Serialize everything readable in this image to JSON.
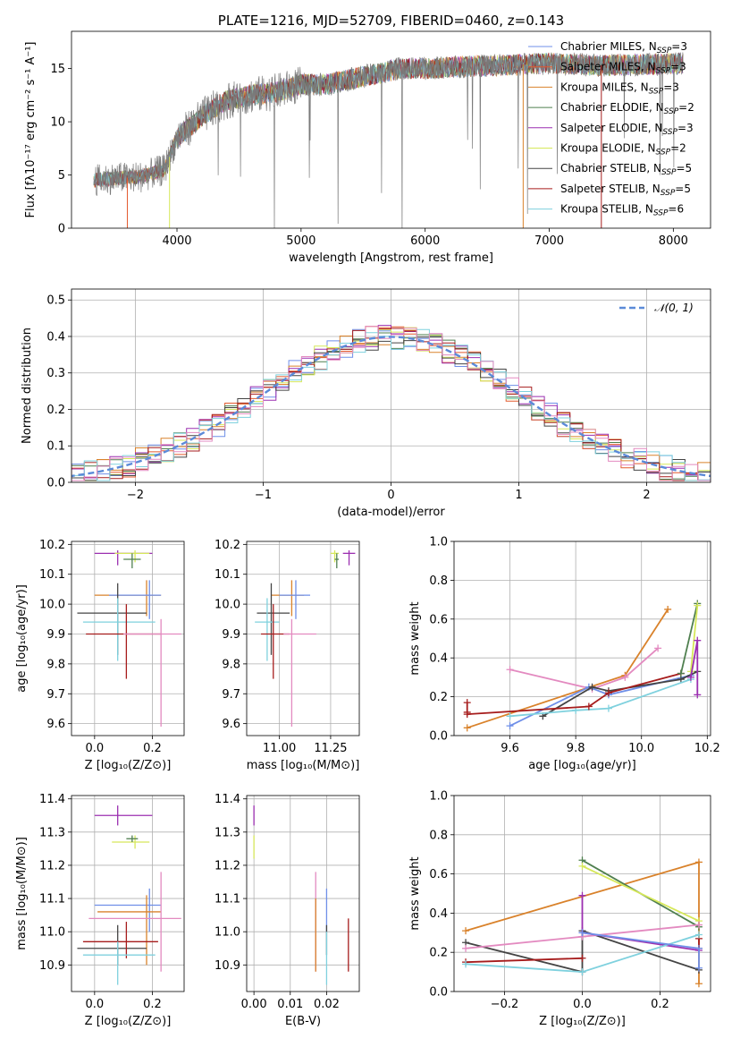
{
  "colors": {
    "Chabrier MILES": "#6f8fe8",
    "Salpeter MILES": "#e35a2e",
    "Kroupa MILES": "#d9822b",
    "Chabrier ELODIE": "#4f7f4f",
    "Salpeter ELODIE": "#9b2fb0",
    "Kroupa ELODIE": "#d6e85a",
    "Chabrier STELIB": "#444444",
    "Salpeter STELIB": "#a61c1c",
    "Kroupa STELIB": "#7fd1de",
    "extra_pink": "#e38ac0",
    "normal": "#5b8ad8",
    "data": "#7a7a7a"
  },
  "chart_data": [
    {
      "id": "spectrum",
      "type": "line",
      "title": "PLATE=1216, MJD=52709, FIBERID=0460, z=0.143",
      "xlabel": "wavelength [Angstrom, rest frame]",
      "ylabel": "Flux [fλ10⁻¹⁷ erg cm⁻² s⁻¹ A⁻¹]",
      "xlim": [
        3150,
        8300
      ],
      "ylim": [
        0,
        18.5
      ],
      "xticks": [
        4000,
        5000,
        6000,
        7000,
        8000
      ],
      "yticks": [
        0,
        5,
        10,
        15
      ],
      "continuum": {
        "x": [
          3330,
          3500,
          3700,
          3900,
          4000,
          4200,
          4400,
          4600,
          4800,
          5000,
          5200,
          5400,
          5600,
          5800,
          6000,
          6300,
          6600,
          7000,
          7400,
          7800,
          8080
        ],
        "y": [
          4.5,
          4.7,
          4.8,
          5.5,
          8.5,
          10.5,
          12.0,
          12.5,
          12.8,
          13.5,
          13.5,
          14.0,
          14.5,
          15.0,
          15.0,
          15.2,
          15.3,
          15.5,
          15.3,
          15.4,
          15.5
        ]
      },
      "legend_position": "upper right",
      "legend": [
        {
          "label": "Chabrier MILES, N",
          "sub": "SSP",
          "tail": "=3",
          "color": "#6f8fe8"
        },
        {
          "label": "Salpeter MILES, N",
          "sub": "SSP",
          "tail": "=3",
          "color": "#e35a2e"
        },
        {
          "label": "Kroupa MILES, N",
          "sub": "SSP",
          "tail": "=3",
          "color": "#d9822b"
        },
        {
          "label": "Chabrier ELODIE, N",
          "sub": "SSP",
          "tail": "=2",
          "color": "#4f7f4f"
        },
        {
          "label": "Salpeter ELODIE, N",
          "sub": "SSP",
          "tail": "=3",
          "color": "#9b2fb0"
        },
        {
          "label": "Kroupa ELODIE, N",
          "sub": "SSP",
          "tail": "=2",
          "color": "#d6e85a"
        },
        {
          "label": "Chabrier STELIB, N",
          "sub": "SSP",
          "tail": "=5",
          "color": "#444444"
        },
        {
          "label": "Salpeter STELIB, N",
          "sub": "SSP",
          "tail": "=5",
          "color": "#a61c1c"
        },
        {
          "label": "Kroupa STELIB, N",
          "sub": "SSP",
          "tail": "=6",
          "color": "#7fd1de"
        }
      ]
    },
    {
      "id": "residuals",
      "type": "line",
      "xlabel": "(data-model)/error",
      "ylabel": "Normed distribution",
      "xlim": [
        -2.5,
        2.5
      ],
      "ylim": [
        0,
        0.53
      ],
      "xticks": [
        -2,
        -1,
        0,
        1,
        2
      ],
      "xtick_labels": [
        "−2",
        "−1",
        "0",
        "1",
        "2"
      ],
      "yticks": [
        0.0,
        0.1,
        0.2,
        0.3,
        0.4,
        0.5
      ],
      "ytick_labels": [
        "0.0",
        "0.1",
        "0.2",
        "0.3",
        "0.4",
        "0.5"
      ],
      "legend_position": "upper right",
      "legend_label": "𝒩(0, 1)",
      "normal_mean": 0,
      "normal_sigma": 1,
      "bin_width": 0.1
    },
    {
      "id": "age_vs_Z",
      "type": "scatter",
      "xlabel": "Z [log₁₀(Z/Z⊙)]",
      "ylabel": "age  [log₁₀(age/yr)]",
      "xlim": [
        -0.08,
        0.31
      ],
      "ylim": [
        9.56,
        10.21
      ],
      "xticks": [
        0.0,
        0.2
      ],
      "xtick_labels": [
        "0.0",
        "0.2"
      ],
      "yticks": [
        9.6,
        9.7,
        9.8,
        9.9,
        10.0,
        10.1,
        10.2
      ],
      "ytick_labels": [
        "9.6",
        "9.7",
        "9.8",
        "9.9",
        "10.0",
        "10.1",
        "10.2"
      ],
      "points": [
        {
          "c": "#9b2fb0",
          "x": 0.08,
          "xl": 0.0,
          "xh": 0.2,
          "y": 10.17,
          "yl": 10.13,
          "yh": 10.18
        },
        {
          "c": "#d6e85a",
          "x": 0.14,
          "xl": 0.07,
          "xh": 0.19,
          "y": 10.17,
          "yl": 10.14,
          "yh": 10.18
        },
        {
          "c": "#4f7f4f",
          "x": 0.13,
          "xl": 0.1,
          "xh": 0.16,
          "y": 10.15,
          "yl": 10.12,
          "yh": 10.17
        },
        {
          "c": "#d9822b",
          "x": 0.18,
          "xl": 0.0,
          "xh": 0.23,
          "y": 10.03,
          "yl": 9.96,
          "yh": 10.08
        },
        {
          "c": "#6f8fe8",
          "x": 0.19,
          "xl": 0.05,
          "xh": 0.23,
          "y": 10.03,
          "yl": 9.95,
          "yh": 10.08
        },
        {
          "c": "#444444",
          "x": 0.08,
          "xl": -0.06,
          "xh": 0.18,
          "y": 9.97,
          "yl": 9.83,
          "yh": 10.07
        },
        {
          "c": "#7fd1de",
          "x": 0.08,
          "xl": -0.04,
          "xh": 0.21,
          "y": 9.94,
          "yl": 9.81,
          "yh": 10.02
        },
        {
          "c": "#a61c1c",
          "x": 0.11,
          "xl": -0.03,
          "xh": 0.23,
          "y": 9.9,
          "yl": 9.75,
          "yh": 10.0
        },
        {
          "c": "#e38ac0",
          "x": 0.23,
          "xl": 0.1,
          "xh": 0.3,
          "y": 9.9,
          "yl": 9.59,
          "yh": 9.95
        }
      ]
    },
    {
      "id": "age_vs_mass",
      "type": "scatter",
      "xlabel": "mass [log₁₀(M/M⊙)]",
      "ylabel": "",
      "xlim": [
        10.84,
        11.39
      ],
      "ylim": [
        9.56,
        10.21
      ],
      "xticks": [
        11.0,
        11.25
      ],
      "xtick_labels": [
        "11.00",
        "11.25"
      ],
      "yticks": [
        9.6,
        9.7,
        9.8,
        9.9,
        10.0,
        10.1,
        10.2
      ],
      "ytick_labels": [
        "9.6",
        "9.7",
        "9.8",
        "9.9",
        "10.0",
        "10.1",
        "10.2"
      ],
      "points": [
        {
          "c": "#9b2fb0",
          "x": 11.34,
          "xl": 11.31,
          "xh": 11.37,
          "y": 10.17,
          "yl": 10.13,
          "yh": 10.18
        },
        {
          "c": "#d6e85a",
          "x": 11.27,
          "xl": 11.25,
          "xh": 11.29,
          "y": 10.17,
          "yl": 10.14,
          "yh": 10.18
        },
        {
          "c": "#4f7f4f",
          "x": 11.28,
          "xl": 11.27,
          "xh": 11.29,
          "y": 10.15,
          "yl": 10.12,
          "yh": 10.17
        },
        {
          "c": "#d9822b",
          "x": 11.06,
          "xl": 10.96,
          "xh": 11.12,
          "y": 10.03,
          "yl": 9.96,
          "yh": 10.08
        },
        {
          "c": "#6f8fe8",
          "x": 11.08,
          "xl": 11.0,
          "xh": 11.15,
          "y": 10.03,
          "yl": 9.95,
          "yh": 10.08
        },
        {
          "c": "#444444",
          "x": 10.96,
          "xl": 10.89,
          "xh": 11.05,
          "y": 9.97,
          "yl": 9.83,
          "yh": 10.07
        },
        {
          "c": "#7fd1de",
          "x": 10.94,
          "xl": 10.88,
          "xh": 11.0,
          "y": 9.94,
          "yl": 9.81,
          "yh": 10.02
        },
        {
          "c": "#a61c1c",
          "x": 10.97,
          "xl": 10.91,
          "xh": 11.05,
          "y": 9.9,
          "yl": 9.75,
          "yh": 10.0
        },
        {
          "c": "#e38ac0",
          "x": 11.06,
          "xl": 11.02,
          "xh": 11.18,
          "y": 9.9,
          "yl": 9.59,
          "yh": 9.95
        }
      ]
    },
    {
      "id": "mass_weight_vs_age",
      "type": "line",
      "xlabel": "age  [log₁₀(age/yr)]",
      "ylabel": "mass weight",
      "xlim": [
        9.43,
        10.21
      ],
      "ylim": [
        0.0,
        1.0
      ],
      "xticks": [
        9.6,
        9.8,
        10.0,
        10.2
      ],
      "xtick_labels": [
        "9.6",
        "9.8",
        "10.0",
        "10.2"
      ],
      "yticks": [
        0.0,
        0.2,
        0.4,
        0.6,
        0.8,
        1.0
      ],
      "ytick_labels": [
        "0.0",
        "0.2",
        "0.4",
        "0.6",
        "0.8",
        "1.0"
      ],
      "series": [
        {
          "c": "#d9822b",
          "x": [
            9.47,
            9.95,
            10.08
          ],
          "y": [
            0.04,
            0.31,
            0.65
          ]
        },
        {
          "c": "#e38ac0",
          "x": [
            9.6,
            9.85,
            9.95,
            10.05
          ],
          "y": [
            0.34,
            0.24,
            0.3,
            0.45
          ]
        },
        {
          "c": "#6f8fe8",
          "x": [
            9.6,
            9.84,
            9.9,
            10.15
          ],
          "y": [
            0.05,
            0.25,
            0.21,
            0.31
          ]
        },
        {
          "c": "#444444",
          "x": [
            9.7,
            9.85,
            9.9,
            10.12,
            10.17
          ],
          "y": [
            0.1,
            0.25,
            0.23,
            0.29,
            0.33
          ]
        },
        {
          "c": "#7fd1de",
          "x": [
            9.6,
            9.8,
            9.9,
            10.15
          ],
          "y": [
            0.1,
            0.13,
            0.14,
            0.29
          ]
        },
        {
          "c": "#a61c1c",
          "x": [
            9.47,
            9.84,
            9.9,
            10.12
          ],
          "y": [
            0.11,
            0.15,
            0.22,
            0.32
          ]
        },
        {
          "c": "#4f7f4f",
          "x": [
            10.12,
            10.17
          ],
          "y": [
            0.32,
            0.68
          ]
        },
        {
          "c": "#d6e85a",
          "x": [
            10.15,
            10.17
          ],
          "y": [
            0.33,
            0.67
          ]
        },
        {
          "c": "#9b2fb0",
          "x": [
            10.15,
            10.17,
            10.17
          ],
          "y": [
            0.3,
            0.49,
            0.21
          ]
        },
        {
          "c": "#a61c1c",
          "x": [
            9.47,
            9.47
          ],
          "y": [
            0.12,
            0.17
          ]
        }
      ]
    },
    {
      "id": "mass_vs_Z",
      "type": "scatter",
      "xlabel": "Z [log₁₀(Z/Z⊙)]",
      "ylabel": "mass [log₁₀(M/M⊙)]",
      "xlim": [
        -0.08,
        0.31
      ],
      "ylim": [
        10.82,
        11.41
      ],
      "xticks": [
        0.0,
        0.2
      ],
      "xtick_labels": [
        "0.0",
        "0.2"
      ],
      "yticks": [
        10.9,
        11.0,
        11.1,
        11.2,
        11.3,
        11.4
      ],
      "ytick_labels": [
        "10.9",
        "11.0",
        "11.1",
        "11.2",
        "11.3",
        "11.4"
      ],
      "points": [
        {
          "c": "#9b2fb0",
          "x": 0.08,
          "xl": 0.0,
          "xh": 0.2,
          "y": 11.35,
          "yl": 11.32,
          "yh": 11.38
        },
        {
          "c": "#d6e85a",
          "x": 0.14,
          "xl": 0.06,
          "xh": 0.19,
          "y": 11.27,
          "yl": 11.25,
          "yh": 11.29
        },
        {
          "c": "#4f7f4f",
          "x": 0.13,
          "xl": 0.11,
          "xh": 0.15,
          "y": 11.28,
          "yl": 11.27,
          "yh": 11.29
        },
        {
          "c": "#6f8fe8",
          "x": 0.19,
          "xl": 0.0,
          "xh": 0.23,
          "y": 11.08,
          "yl": 11.0,
          "yh": 11.13
        },
        {
          "c": "#d9822b",
          "x": 0.18,
          "xl": 0.01,
          "xh": 0.23,
          "y": 11.06,
          "yl": 10.9,
          "yh": 11.11
        },
        {
          "c": "#e38ac0",
          "x": 0.23,
          "xl": -0.02,
          "xh": 0.3,
          "y": 11.04,
          "yl": 10.88,
          "yh": 11.18
        },
        {
          "c": "#444444",
          "x": 0.08,
          "xl": -0.06,
          "xh": 0.18,
          "y": 10.95,
          "yl": 10.9,
          "yh": 11.02
        },
        {
          "c": "#a61c1c",
          "x": 0.11,
          "xl": -0.04,
          "xh": 0.22,
          "y": 10.97,
          "yl": 10.92,
          "yh": 11.03
        },
        {
          "c": "#7fd1de",
          "x": 0.08,
          "xl": -0.04,
          "xh": 0.21,
          "y": 10.93,
          "yl": 10.84,
          "yh": 10.97
        }
      ]
    },
    {
      "id": "mass_vs_EBV",
      "type": "scatter",
      "xlabel": "E(B-V)",
      "ylabel": "",
      "xlim": [
        -0.002,
        0.029
      ],
      "ylim": [
        10.82,
        11.41
      ],
      "xticks": [
        0.0,
        0.01,
        0.02
      ],
      "xtick_labels": [
        "0.00",
        "0.01",
        "0.02"
      ],
      "yticks": [
        10.9,
        11.0,
        11.1,
        11.2,
        11.3,
        11.4
      ],
      "ytick_labels": [
        "10.9",
        "11.0",
        "11.1",
        "11.2",
        "11.3",
        "11.4"
      ],
      "points": [
        {
          "c": "#9b2fb0",
          "x": 0.0,
          "xl": 0.0,
          "xh": 0.0,
          "y": 11.35,
          "yl": 11.32,
          "yh": 11.38
        },
        {
          "c": "#d6e85a",
          "x": 0.0,
          "xl": 0.0,
          "xh": 0.0,
          "y": 11.26,
          "yl": 11.22,
          "yh": 11.29
        },
        {
          "c": "#e38ac0",
          "x": 0.017,
          "xl": 0.017,
          "xh": 0.017,
          "y": 11.05,
          "yl": 10.88,
          "yh": 11.18
        },
        {
          "c": "#d9822b",
          "x": 0.017,
          "xl": 0.017,
          "xh": 0.017,
          "y": 11.03,
          "yl": 10.88,
          "yh": 11.1
        },
        {
          "c": "#6f8fe8",
          "x": 0.02,
          "xl": 0.02,
          "xh": 0.02,
          "y": 11.08,
          "yl": 11.0,
          "yh": 11.13
        },
        {
          "c": "#444444",
          "x": 0.02,
          "xl": 0.02,
          "xh": 0.02,
          "y": 11.0,
          "yl": 10.93,
          "yh": 11.02
        },
        {
          "c": "#7fd1de",
          "x": 0.02,
          "xl": 0.02,
          "xh": 0.02,
          "y": 10.93,
          "yl": 10.84,
          "yh": 11.0
        },
        {
          "c": "#a61c1c",
          "x": 0.026,
          "xl": 0.026,
          "xh": 0.026,
          "y": 10.96,
          "yl": 10.88,
          "yh": 11.04
        }
      ]
    },
    {
      "id": "mass_weight_vs_Z",
      "type": "line",
      "xlabel": "Z [log₁₀(Z/Z⊙)]",
      "ylabel": "mass weight",
      "xlim": [
        -0.33,
        0.33
      ],
      "ylim": [
        0.0,
        1.0
      ],
      "xticks": [
        -0.2,
        0.0,
        0.2
      ],
      "xtick_labels": [
        "−0.2",
        "0.0",
        "0.2"
      ],
      "yticks": [
        0.0,
        0.2,
        0.4,
        0.6,
        0.8,
        1.0
      ],
      "ytick_labels": [
        "0.0",
        "0.2",
        "0.4",
        "0.6",
        "0.8",
        "1.0"
      ],
      "series": [
        {
          "c": "#d9822b",
          "x": [
            -0.3,
            0.3,
            0.3
          ],
          "y": [
            0.31,
            0.66,
            0.04
          ]
        },
        {
          "c": "#4f7f4f",
          "x": [
            0.0,
            0.3
          ],
          "y": [
            0.67,
            0.33
          ]
        },
        {
          "c": "#d6e85a",
          "x": [
            0.0,
            0.3
          ],
          "y": [
            0.64,
            0.36
          ]
        },
        {
          "c": "#444444",
          "x": [
            -0.3,
            0.0,
            0.0,
            0.3
          ],
          "y": [
            0.25,
            0.1,
            0.31,
            0.11
          ]
        },
        {
          "c": "#e38ac0",
          "x": [
            -0.3,
            0.0,
            0.3
          ],
          "y": [
            0.22,
            0.28,
            0.34
          ]
        },
        {
          "c": "#9b2fb0",
          "x": [
            0.0,
            0.0,
            0.3
          ],
          "y": [
            0.49,
            0.3,
            0.21
          ]
        },
        {
          "c": "#a61c1c",
          "x": [
            -0.3,
            0.0
          ],
          "y": [
            0.15,
            0.17
          ]
        },
        {
          "c": "#a61c1c",
          "x": [
            0.3,
            0.3
          ],
          "y": [
            0.22,
            0.27
          ]
        },
        {
          "c": "#7fd1de",
          "x": [
            -0.3,
            0.0,
            0.3
          ],
          "y": [
            0.14,
            0.1,
            0.29
          ]
        },
        {
          "c": "#6f8fe8",
          "x": [
            0.0,
            0.3,
            0.3
          ],
          "y": [
            0.3,
            0.22,
            0.12
          ]
        }
      ]
    }
  ]
}
